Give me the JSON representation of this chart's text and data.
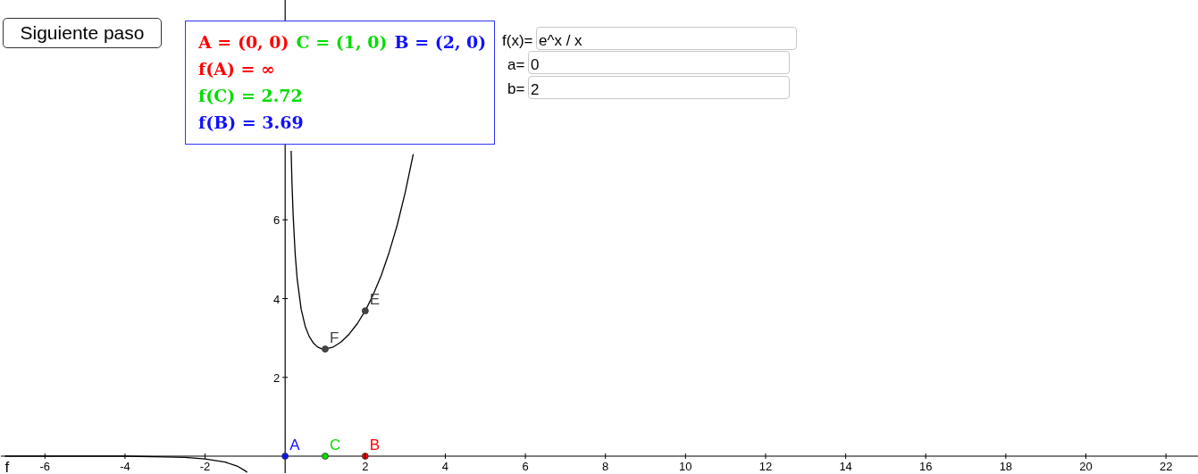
{
  "chart_data": {
    "type": "line",
    "xlim": [
      -7.1,
      22.8
    ],
    "ylim": [
      -0.43,
      11.58
    ],
    "xticks": [
      -6,
      -4,
      -2,
      2,
      4,
      6,
      8,
      10,
      12,
      14,
      16,
      18,
      20,
      22
    ],
    "yticks": [
      2,
      4,
      6
    ],
    "marker": "none",
    "series": [
      {
        "name": "f",
        "color": "#000000",
        "x": [
          -7,
          -6,
          -5,
          -4,
          -3,
          -2.5,
          -2,
          -1.5,
          -1.2,
          -1,
          -0.95,
          0,
          0.15,
          0.17,
          0.2,
          0.25,
          0.3,
          0.4,
          0.5,
          0.6,
          0.7,
          0.8,
          0.9,
          1,
          1.2,
          1.4,
          1.6,
          1.8,
          2,
          2.2,
          2.4,
          2.6,
          2.8,
          3,
          3.2
        ],
        "values": [
          0,
          0,
          0,
          0,
          -0.02,
          -0.03,
          -0.07,
          -0.15,
          -0.25,
          -0.37,
          -0.41,
          null,
          7.75,
          6.95,
          6.11,
          5.14,
          4.5,
          3.73,
          3.3,
          3.04,
          2.88,
          2.78,
          2.73,
          2.72,
          2.77,
          2.9,
          3.1,
          3.36,
          3.69,
          4.1,
          4.59,
          5.18,
          5.87,
          6.7,
          7.67
        ]
      },
      {
        "name": "A",
        "type": "scatter",
        "marker": "circle",
        "color": "#1010ff",
        "x": [
          0
        ],
        "values": [
          0
        ]
      },
      {
        "name": "C",
        "type": "scatter",
        "marker": "circle",
        "color": "#00dd00",
        "x": [
          1
        ],
        "values": [
          0
        ]
      },
      {
        "name": "B",
        "type": "scatter",
        "marker": "circle",
        "color": "#ff0000",
        "x": [
          2
        ],
        "values": [
          0
        ]
      },
      {
        "name": "F",
        "type": "scatter",
        "marker": "circle",
        "color": "#444444",
        "x": [
          1
        ],
        "values": [
          2.72
        ]
      },
      {
        "name": "E",
        "type": "scatter",
        "marker": "circle",
        "color": "#444444",
        "x": [
          2
        ],
        "values": [
          3.69
        ]
      }
    ],
    "annotations": [
      "Siguiente paso",
      "A = (0, 0)",
      "C = (1, 0)",
      "B = (2, 0)",
      "f(A) = ∞",
      "f(C) = 2.72",
      "f(B) = 3.69",
      "f(x)=",
      "e^x / x",
      "a=",
      "0",
      "b=",
      "2"
    ]
  }
}
